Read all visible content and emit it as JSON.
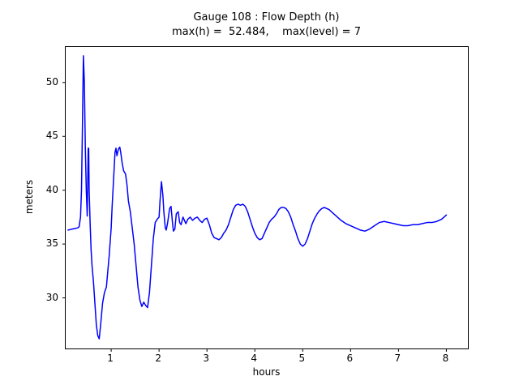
{
  "chart_data": {
    "type": "line",
    "title": "Gauge 108 : Flow Depth (h)",
    "subtitle": "max(h) =  52.484,    max(level) = 7",
    "xlabel": "hours",
    "ylabel": "meters",
    "xlim": [
      0.05,
      8.45
    ],
    "ylim": [
      25.3,
      53.3
    ],
    "xticks": [
      1,
      2,
      3,
      4,
      5,
      6,
      7,
      8
    ],
    "yticks": [
      30,
      35,
      40,
      45,
      50
    ],
    "grid": false,
    "legend": null,
    "line_color": "#0000ff",
    "axis_color": "#000000",
    "series": [
      {
        "name": "flow-depth-h",
        "points": [
          [
            0.1,
            36.3
          ],
          [
            0.15,
            36.35
          ],
          [
            0.2,
            36.4
          ],
          [
            0.25,
            36.45
          ],
          [
            0.3,
            36.5
          ],
          [
            0.33,
            36.6
          ],
          [
            0.36,
            37.5
          ],
          [
            0.38,
            40.0
          ],
          [
            0.4,
            46.0
          ],
          [
            0.42,
            52.48
          ],
          [
            0.44,
            50.0
          ],
          [
            0.46,
            44.0
          ],
          [
            0.48,
            40.0
          ],
          [
            0.5,
            37.6
          ],
          [
            0.51,
            40.5
          ],
          [
            0.52,
            43.9
          ],
          [
            0.53,
            43.9
          ],
          [
            0.54,
            40.0
          ],
          [
            0.56,
            37.0
          ],
          [
            0.58,
            34.5
          ],
          [
            0.6,
            33.0
          ],
          [
            0.63,
            31.5
          ],
          [
            0.66,
            29.5
          ],
          [
            0.69,
            27.5
          ],
          [
            0.72,
            26.5
          ],
          [
            0.75,
            26.2
          ],
          [
            0.78,
            27.5
          ],
          [
            0.82,
            29.5
          ],
          [
            0.86,
            30.5
          ],
          [
            0.9,
            31.0
          ],
          [
            0.93,
            32.5
          ],
          [
            0.96,
            34.0
          ],
          [
            1.0,
            36.5
          ],
          [
            1.02,
            38.5
          ],
          [
            1.05,
            41.0
          ],
          [
            1.08,
            43.5
          ],
          [
            1.1,
            43.9
          ],
          [
            1.12,
            43.2
          ],
          [
            1.15,
            43.8
          ],
          [
            1.18,
            44.0
          ],
          [
            1.2,
            43.5
          ],
          [
            1.23,
            42.5
          ],
          [
            1.26,
            41.8
          ],
          [
            1.3,
            41.5
          ],
          [
            1.33,
            40.5
          ],
          [
            1.36,
            39.0
          ],
          [
            1.4,
            38.0
          ],
          [
            1.44,
            36.5
          ],
          [
            1.48,
            35.0
          ],
          [
            1.52,
            33.0
          ],
          [
            1.56,
            31.0
          ],
          [
            1.6,
            29.8
          ],
          [
            1.64,
            29.2
          ],
          [
            1.68,
            29.6
          ],
          [
            1.72,
            29.3
          ],
          [
            1.76,
            29.1
          ],
          [
            1.8,
            30.5
          ],
          [
            1.84,
            33.0
          ],
          [
            1.88,
            35.5
          ],
          [
            1.92,
            37.0
          ],
          [
            1.96,
            37.3
          ],
          [
            2.0,
            37.5
          ],
          [
            2.02,
            39.0
          ],
          [
            2.05,
            40.8
          ],
          [
            2.08,
            39.5
          ],
          [
            2.1,
            38.0
          ],
          [
            2.13,
            36.5
          ],
          [
            2.15,
            36.3
          ],
          [
            2.18,
            37.0
          ],
          [
            2.22,
            38.3
          ],
          [
            2.25,
            38.5
          ],
          [
            2.28,
            37.0
          ],
          [
            2.3,
            36.2
          ],
          [
            2.33,
            36.4
          ],
          [
            2.36,
            37.8
          ],
          [
            2.4,
            38.0
          ],
          [
            2.43,
            37.0
          ],
          [
            2.46,
            36.8
          ],
          [
            2.5,
            37.5
          ],
          [
            2.53,
            37.2
          ],
          [
            2.56,
            36.9
          ],
          [
            2.6,
            37.3
          ],
          [
            2.65,
            37.5
          ],
          [
            2.7,
            37.2
          ],
          [
            2.75,
            37.4
          ],
          [
            2.8,
            37.5
          ],
          [
            2.85,
            37.2
          ],
          [
            2.9,
            37.0
          ],
          [
            2.95,
            37.3
          ],
          [
            3.0,
            37.4
          ],
          [
            3.05,
            36.8
          ],
          [
            3.1,
            36.0
          ],
          [
            3.15,
            35.6
          ],
          [
            3.2,
            35.5
          ],
          [
            3.25,
            35.4
          ],
          [
            3.3,
            35.6
          ],
          [
            3.35,
            36.0
          ],
          [
            3.4,
            36.3
          ],
          [
            3.45,
            36.8
          ],
          [
            3.5,
            37.5
          ],
          [
            3.55,
            38.2
          ],
          [
            3.6,
            38.6
          ],
          [
            3.65,
            38.7
          ],
          [
            3.7,
            38.6
          ],
          [
            3.75,
            38.7
          ],
          [
            3.8,
            38.5
          ],
          [
            3.85,
            38.0
          ],
          [
            3.9,
            37.3
          ],
          [
            3.95,
            36.6
          ],
          [
            4.0,
            36.0
          ],
          [
            4.05,
            35.6
          ],
          [
            4.1,
            35.4
          ],
          [
            4.15,
            35.5
          ],
          [
            4.2,
            36.0
          ],
          [
            4.25,
            36.5
          ],
          [
            4.3,
            37.0
          ],
          [
            4.35,
            37.3
          ],
          [
            4.4,
            37.5
          ],
          [
            4.45,
            37.8
          ],
          [
            4.5,
            38.2
          ],
          [
            4.55,
            38.4
          ],
          [
            4.6,
            38.4
          ],
          [
            4.65,
            38.3
          ],
          [
            4.7,
            38.0
          ],
          [
            4.75,
            37.5
          ],
          [
            4.8,
            36.8
          ],
          [
            4.85,
            36.2
          ],
          [
            4.9,
            35.5
          ],
          [
            4.95,
            35.0
          ],
          [
            5.0,
            34.8
          ],
          [
            5.05,
            35.0
          ],
          [
            5.1,
            35.5
          ],
          [
            5.15,
            36.2
          ],
          [
            5.2,
            36.9
          ],
          [
            5.25,
            37.4
          ],
          [
            5.3,
            37.8
          ],
          [
            5.35,
            38.1
          ],
          [
            5.4,
            38.3
          ],
          [
            5.45,
            38.4
          ],
          [
            5.5,
            38.3
          ],
          [
            5.55,
            38.2
          ],
          [
            5.6,
            38.0
          ],
          [
            5.7,
            37.6
          ],
          [
            5.8,
            37.2
          ],
          [
            5.9,
            36.9
          ],
          [
            6.0,
            36.7
          ],
          [
            6.1,
            36.5
          ],
          [
            6.2,
            36.3
          ],
          [
            6.3,
            36.2
          ],
          [
            6.4,
            36.4
          ],
          [
            6.5,
            36.7
          ],
          [
            6.6,
            37.0
          ],
          [
            6.7,
            37.1
          ],
          [
            6.8,
            37.0
          ],
          [
            6.9,
            36.9
          ],
          [
            7.0,
            36.8
          ],
          [
            7.1,
            36.7
          ],
          [
            7.2,
            36.7
          ],
          [
            7.3,
            36.8
          ],
          [
            7.4,
            36.8
          ],
          [
            7.5,
            36.9
          ],
          [
            7.6,
            37.0
          ],
          [
            7.7,
            37.0
          ],
          [
            7.8,
            37.1
          ],
          [
            7.9,
            37.3
          ],
          [
            8.0,
            37.7
          ]
        ]
      }
    ]
  }
}
